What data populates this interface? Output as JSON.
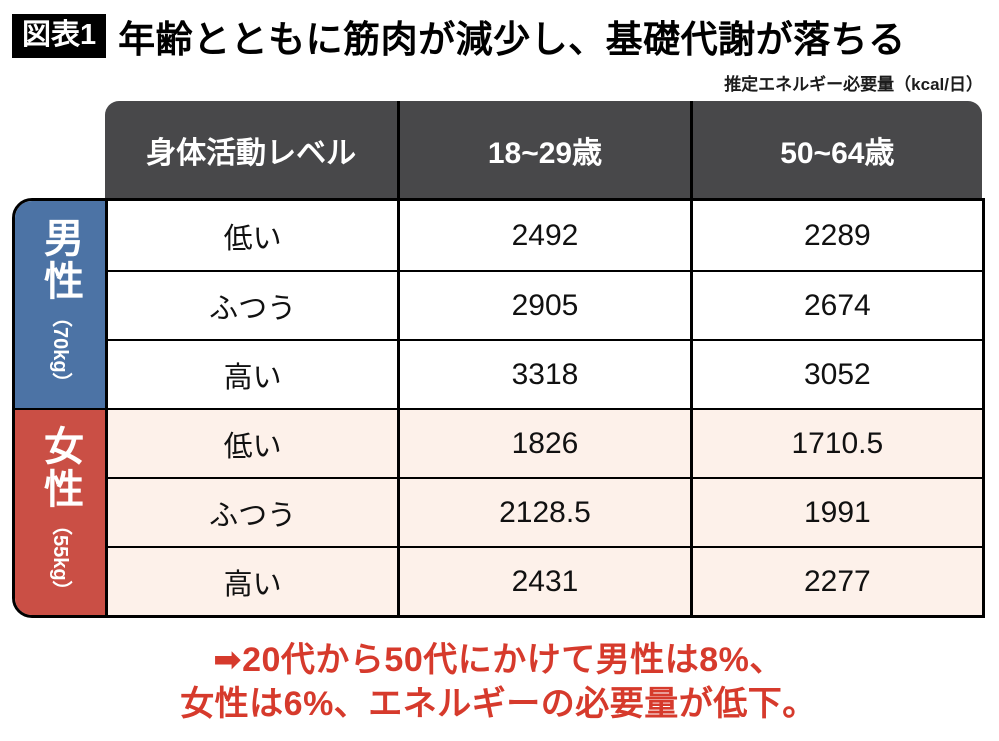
{
  "figure": {
    "badge": "図表1",
    "title": "年齢とともに筋肉が減少し、基礎代謝が落ちる",
    "unit_note": "推定エネルギー必要量（kcal/日）"
  },
  "chart_data": {
    "type": "table",
    "title": "年齢とともに筋肉が減少し、基礎代謝が落ちる",
    "unit": "kcal/日",
    "columns": [
      "身体活動レベル",
      "18~29歳",
      "50~64歳"
    ],
    "groups": [
      {
        "label": "男性",
        "weight": "（70kg）",
        "color": "#4c73a5",
        "rows": [
          [
            "低い",
            2492,
            2289
          ],
          [
            "ふつう",
            2905,
            2674
          ],
          [
            "高い",
            3318,
            3052
          ]
        ]
      },
      {
        "label": "女性",
        "weight": "（55kg）",
        "color": "#ca4f45",
        "rows": [
          [
            "低い",
            1826,
            1710.5
          ],
          [
            "ふつう",
            2128.5,
            1991
          ],
          [
            "高い",
            2431,
            2277
          ]
        ]
      }
    ]
  },
  "note": {
    "line1": "➡20代から50代にかけて男性は8%、",
    "line2": "女性は6%、エネルギーの必要量が低下。"
  },
  "colors": {
    "badge_bg": "#000000",
    "header_bg": "#48484a",
    "male_bg": "#4c73a5",
    "female_bg": "#ca4f45",
    "female_row_bg": "#fdf1ea",
    "note_red": "#d63a2c"
  }
}
